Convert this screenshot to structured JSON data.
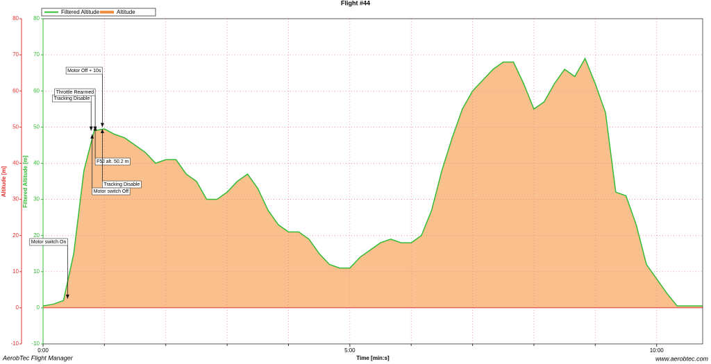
{
  "chart_data": {
    "type": "area-line",
    "title": "Flight #44",
    "xlabel": "Time [min:s]",
    "ylabel": "Altitude [m]",
    "y2label": "Filtered Altitude [m]",
    "footer_left": "AerobTec Flight Manager",
    "footer_right": "www.aerobtec.com",
    "x": [
      0,
      10,
      20,
      30,
      40,
      50,
      60,
      70,
      80,
      90,
      100,
      110,
      120,
      130,
      140,
      150,
      160,
      170,
      180,
      190,
      200,
      210,
      220,
      230,
      240,
      250,
      260,
      270,
      280,
      290,
      300,
      310,
      320,
      330,
      340,
      350,
      360,
      370,
      380,
      390,
      400,
      410,
      420,
      430,
      440,
      450,
      460,
      470,
      480,
      490,
      500,
      510,
      520,
      530,
      540,
      550,
      560,
      570,
      580,
      590,
      600,
      610,
      620,
      630,
      640,
      645
    ],
    "series": [
      {
        "name": "Filtered Altitude",
        "color": "#33bb33",
        "axis": "y2",
        "values": [
          0.5,
          1,
          2,
          15,
          38,
          49,
          49.5,
          48,
          47,
          45,
          43,
          40,
          41,
          41,
          37,
          35,
          30,
          30,
          32,
          35,
          37,
          33,
          27,
          23,
          21,
          21,
          19,
          15,
          12,
          11,
          11,
          14,
          16,
          18,
          19,
          18,
          18,
          20,
          27,
          38,
          47,
          55,
          60,
          63,
          66,
          68,
          68,
          62,
          55,
          57,
          62,
          66,
          64,
          69,
          62,
          54,
          32,
          31,
          23,
          12,
          8,
          4,
          0.5,
          0.5,
          0.5,
          0.5
        ]
      },
      {
        "name": "Altitude",
        "color": "#f28c3c",
        "fill": "#f9c08e",
        "values": [
          0.5,
          1,
          2,
          15,
          38,
          49,
          49.5,
          48,
          47,
          45,
          43,
          40,
          41,
          41,
          37,
          35,
          30,
          30,
          32,
          35,
          37,
          33,
          27,
          23,
          21,
          21,
          19,
          15,
          12,
          11,
          11,
          14,
          16,
          18,
          19,
          18,
          18,
          20,
          27,
          38,
          47,
          55,
          60,
          63,
          66,
          68,
          68,
          62,
          55,
          57,
          62,
          66,
          64,
          69,
          62,
          54,
          32,
          31,
          23,
          12,
          8,
          4,
          0.5,
          0.5,
          0.5,
          0.5
        ]
      }
    ],
    "xlim": [
      0,
      645
    ],
    "xticks": [
      {
        "value": 0,
        "label": "0:00"
      },
      {
        "value": 300,
        "label": "5:00"
      },
      {
        "value": 600,
        "label": "10:00"
      }
    ],
    "xminorticks": [
      60,
      120,
      180,
      240,
      360,
      420,
      480,
      540
    ],
    "ylim": [
      -10,
      80
    ],
    "yticks": [
      -10,
      0,
      10,
      20,
      30,
      40,
      50,
      60,
      70,
      80
    ],
    "y2lim": [
      -10,
      80
    ],
    "y2ticks": [
      -10,
      0,
      10,
      20,
      30,
      40,
      50,
      60,
      70,
      80
    ],
    "grid": true,
    "legend": "top-left",
    "annotations": [
      {
        "label": "Motor switch On",
        "x": 24,
        "y": 2.5
      },
      {
        "label": "Tracking Disable",
        "x": 47,
        "y": 49
      },
      {
        "label": "Throttle Rearmed",
        "x": 51,
        "y": 49
      },
      {
        "label": "Motor Off + 10s",
        "x": 58,
        "y": 50
      },
      {
        "label": "F5J alt. 50.2 m",
        "x": 51,
        "y": 50.2
      },
      {
        "label": "Tracking Disable",
        "x": 58,
        "y": 49.5
      },
      {
        "label": "Motor switch Off",
        "x": 48,
        "y": 48
      }
    ]
  }
}
